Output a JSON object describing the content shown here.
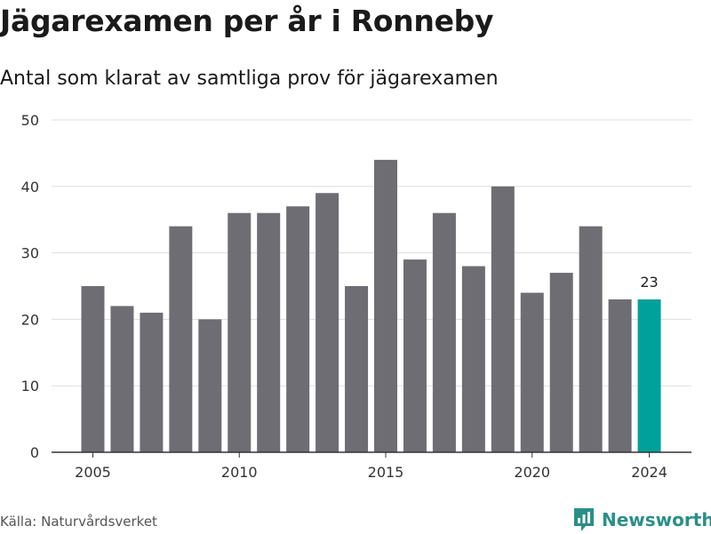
{
  "header": {
    "title": "Jägarexamen per år i Ronneby",
    "subtitle": "Antal som klarat av samtliga prov för jägarexamen"
  },
  "footer": {
    "source": "Källa: Naturvårdsverket",
    "brand_name": "Newsworthy",
    "brand_icon": "newsworthy-logo-icon"
  },
  "colors": {
    "bar": "#6e6d73",
    "highlight": "#00a19a",
    "grid": "#dddddd",
    "axis": "#333333",
    "brand": "#2a8f88"
  },
  "chart_data": {
    "type": "bar",
    "x": [
      2005,
      2006,
      2007,
      2008,
      2009,
      2010,
      2011,
      2012,
      2013,
      2014,
      2015,
      2016,
      2017,
      2018,
      2019,
      2020,
      2021,
      2022,
      2023,
      2024
    ],
    "values": [
      25,
      22,
      21,
      34,
      20,
      36,
      36,
      37,
      39,
      25,
      44,
      29,
      36,
      28,
      40,
      24,
      27,
      34,
      23,
      23
    ],
    "highlight_x": 2024,
    "highlight_label": "23",
    "x_ticks": [
      2005,
      2010,
      2015,
      2020,
      2024
    ],
    "y_ticks": [
      0,
      10,
      20,
      30,
      40,
      50
    ],
    "ylim": [
      0,
      50
    ],
    "grid": true,
    "legend": false
  }
}
